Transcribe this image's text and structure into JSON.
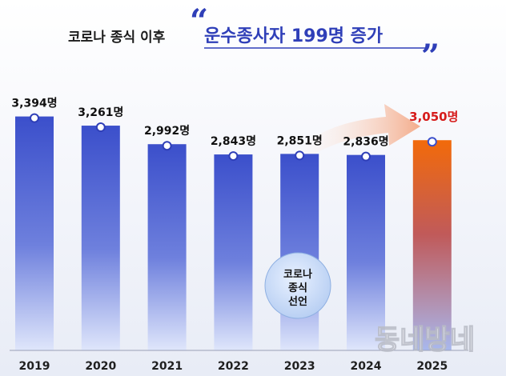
{
  "title": {
    "prefix": "코로나 종식 이후",
    "main": "운수종사자 199명 증가",
    "quote_open": "“",
    "quote_close": "”"
  },
  "badge": {
    "line1": "코로나",
    "line2": "종식",
    "line3": "선언"
  },
  "watermark": "동네방네",
  "colors": {
    "bar_top": "#3b4fcb",
    "bar_bottom": "#dfe6fb",
    "highlight_top": "#f26a0a",
    "highlight_bottom": "#a8b8ee",
    "highlight_label": "#d61b1b",
    "arrow": "#f3a784"
  },
  "chart_data": {
    "type": "bar",
    "categories": [
      "2019",
      "2020",
      "2021",
      "2022",
      "2023",
      "2024",
      "2025"
    ],
    "values": [
      3394,
      3261,
      2992,
      2843,
      2851,
      2836,
      3050
    ],
    "labels": [
      "3,394명",
      "3,261명",
      "2,992명",
      "2,843명",
      "2,851명",
      "2,836명",
      "3,050명"
    ],
    "highlight_index": 6,
    "ylim": [
      0,
      3900
    ]
  }
}
